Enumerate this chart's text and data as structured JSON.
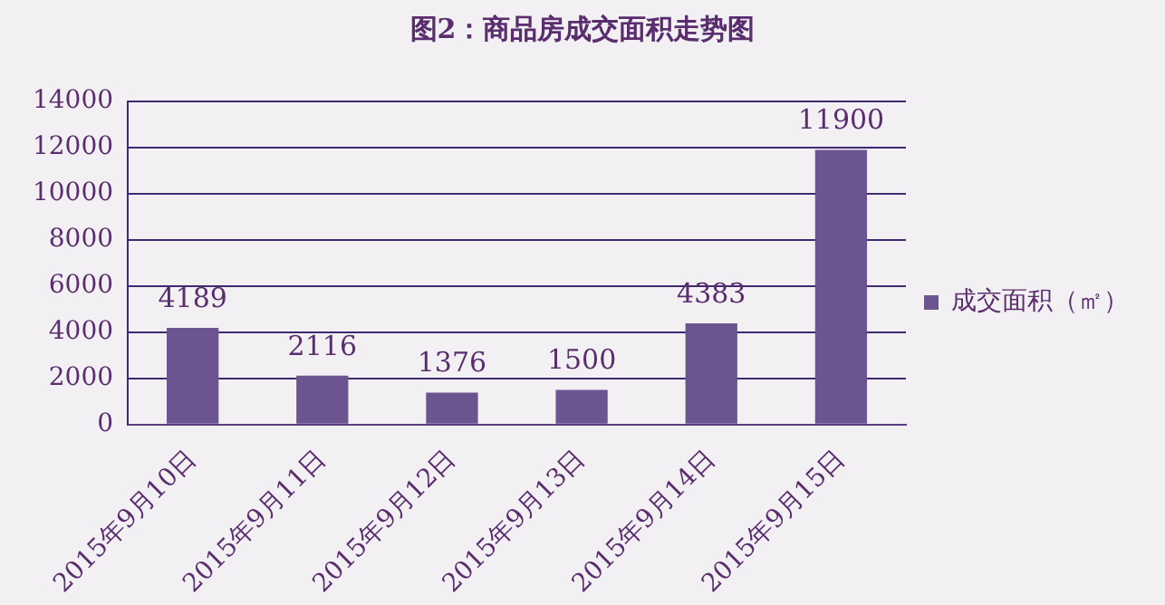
{
  "chart_data": {
    "type": "bar",
    "title": "图2：商品房成交面积走势图",
    "categories": [
      "2015年9月10日",
      "2015年9月11日",
      "2015年9月12日",
      "2015年9月13日",
      "2015年9月14日",
      "2015年9月15日"
    ],
    "series": [
      {
        "name": "成交面积（㎡）",
        "color": "#6b5490",
        "values": [
          4189,
          2116,
          1376,
          1500,
          4383,
          11900
        ]
      }
    ],
    "ylim": [
      0,
      14000
    ],
    "yticks": [
      0,
      2000,
      4000,
      6000,
      8000,
      10000,
      12000,
      14000
    ],
    "grid": "y",
    "legend": "right",
    "data_labels": true
  }
}
